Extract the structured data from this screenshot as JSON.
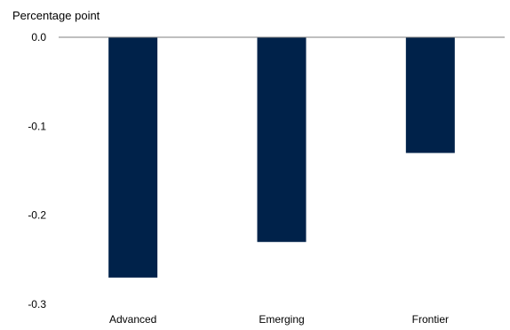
{
  "chart_data": {
    "type": "bar",
    "title": "",
    "ylabel": "Percentage point",
    "xlabel": "",
    "categories": [
      "Advanced",
      "Emerging",
      "Frontier"
    ],
    "values": [
      -0.27,
      -0.23,
      -0.13
    ],
    "ylim": [
      -0.3,
      0.0
    ],
    "yticks": [
      "0.0",
      "-0.1",
      "-0.2",
      "-0.3"
    ],
    "grid": false,
    "bar_color": "#00224a",
    "axis_color": "#7f7f7f"
  }
}
